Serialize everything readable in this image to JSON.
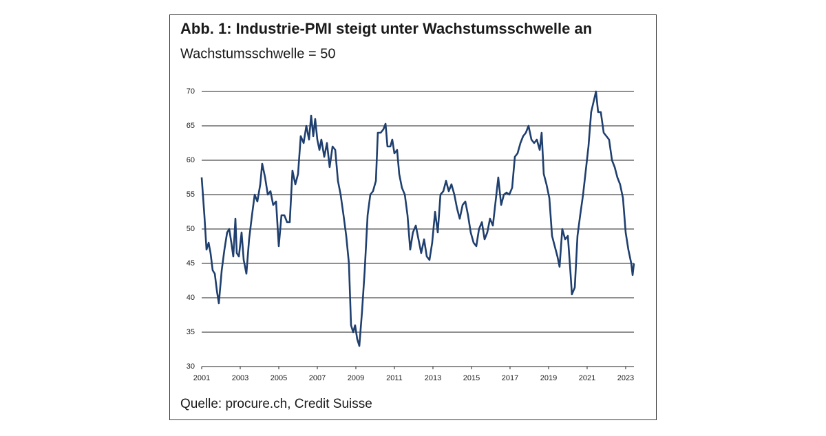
{
  "chart_data": {
    "type": "line",
    "title": "Abb. 1: Industrie-PMI steigt unter Wachstumsschwelle an",
    "subtitle": "Wachstumsschwelle = 50",
    "source": "Quelle: procure.ch, Credit Suisse",
    "xlim": [
      2001,
      2023.43
    ],
    "xticks": [
      2001,
      2003,
      2005,
      2007,
      2009,
      2011,
      2013,
      2015,
      2017,
      2019,
      2021,
      2023
    ],
    "ylim": [
      30,
      70
    ],
    "yticks": [
      30,
      35,
      40,
      45,
      50,
      55,
      60,
      65,
      70
    ],
    "grid": true,
    "x": [
      2001.0,
      2001.14,
      2001.25,
      2001.36,
      2001.46,
      2001.57,
      2001.68,
      2001.79,
      2001.89,
      2002.04,
      2002.18,
      2002.32,
      2002.43,
      2002.54,
      2002.64,
      2002.75,
      2002.82,
      2002.93,
      2003.07,
      2003.18,
      2003.32,
      2003.46,
      2003.61,
      2003.75,
      2003.89,
      2004.04,
      2004.14,
      2004.29,
      2004.43,
      2004.57,
      2004.71,
      2004.86,
      2005.0,
      2005.14,
      2005.29,
      2005.43,
      2005.57,
      2005.71,
      2005.86,
      2006.0,
      2006.14,
      2006.29,
      2006.43,
      2006.57,
      2006.68,
      2006.79,
      2006.89,
      2007.0,
      2007.11,
      2007.21,
      2007.36,
      2007.5,
      2007.64,
      2007.79,
      2007.93,
      2008.07,
      2008.21,
      2008.36,
      2008.5,
      2008.64,
      2008.75,
      2008.86,
      2008.96,
      2009.07,
      2009.18,
      2009.32,
      2009.46,
      2009.61,
      2009.75,
      2009.89,
      2010.04,
      2010.14,
      2010.29,
      2010.43,
      2010.54,
      2010.64,
      2010.79,
      2010.89,
      2011.0,
      2011.14,
      2011.25,
      2011.39,
      2011.54,
      2011.68,
      2011.82,
      2011.96,
      2012.11,
      2012.25,
      2012.39,
      2012.54,
      2012.68,
      2012.82,
      2012.96,
      2013.11,
      2013.25,
      2013.39,
      2013.54,
      2013.68,
      2013.82,
      2013.96,
      2014.11,
      2014.25,
      2014.39,
      2014.54,
      2014.68,
      2014.82,
      2014.96,
      2015.11,
      2015.25,
      2015.39,
      2015.54,
      2015.68,
      2015.82,
      2015.96,
      2016.11,
      2016.25,
      2016.39,
      2016.54,
      2016.68,
      2016.82,
      2016.96,
      2017.11,
      2017.25,
      2017.39,
      2017.54,
      2017.68,
      2017.82,
      2017.96,
      2018.11,
      2018.25,
      2018.39,
      2018.54,
      2018.64,
      2018.75,
      2018.89,
      2019.04,
      2019.18,
      2019.32,
      2019.46,
      2019.57,
      2019.71,
      2019.86,
      2020.0,
      2020.14,
      2020.21,
      2020.36,
      2020.5,
      2020.64,
      2020.79,
      2020.93,
      2021.07,
      2021.21,
      2021.36,
      2021.46,
      2021.57,
      2021.71,
      2021.86,
      2022.0,
      2022.14,
      2022.29,
      2022.43,
      2022.57,
      2022.71,
      2022.86,
      2023.0,
      2023.14,
      2023.29,
      2023.36,
      2023.43
    ],
    "series": [
      {
        "color": "#1f3f6e",
        "values": [
          57.5,
          52,
          47,
          48,
          46.5,
          44,
          43.5,
          41,
          39.2,
          44,
          47,
          49.5,
          50,
          48,
          46,
          51.5,
          46.5,
          46,
          49.5,
          45.5,
          43.5,
          48.5,
          52,
          55,
          54,
          56.5,
          59.5,
          57.5,
          55,
          55.5,
          53.5,
          54,
          47.5,
          52,
          52,
          51,
          51,
          58.5,
          56.5,
          58,
          63.5,
          62.5,
          65,
          63,
          66.5,
          63.5,
          66,
          63,
          61.5,
          63,
          60.5,
          62.5,
          59,
          62,
          61.5,
          57,
          55,
          52,
          49,
          45,
          36,
          35,
          36,
          34,
          33,
          38,
          44,
          52,
          55,
          55.5,
          57,
          64,
          64,
          64.5,
          65.3,
          62,
          62,
          63,
          61,
          61.5,
          58,
          56,
          55,
          52,
          47,
          49.5,
          50.5,
          48.5,
          46.5,
          48.5,
          46,
          45.5,
          48,
          52.5,
          49.5,
          55,
          55.5,
          57,
          55.5,
          56.5,
          55,
          53,
          51.5,
          53.5,
          54,
          52,
          49.5,
          48,
          47.5,
          50,
          51,
          48.5,
          49.5,
          51.5,
          50.5,
          54,
          57.5,
          53.5,
          55,
          55.3,
          55,
          56,
          60.5,
          61,
          62.5,
          63.5,
          64,
          65,
          63,
          62.5,
          63,
          61.5,
          64,
          58,
          56.5,
          54.5,
          49,
          47.5,
          46,
          44.5,
          50,
          48.5,
          49,
          43.5,
          40.5,
          41.5,
          49,
          52,
          55,
          58.5,
          62,
          67,
          68.8,
          70,
          67,
          67,
          64,
          63.5,
          63,
          60,
          59,
          57.5,
          56.5,
          54.5,
          49.5,
          47,
          45,
          43.3,
          45
        ]
      }
    ]
  }
}
